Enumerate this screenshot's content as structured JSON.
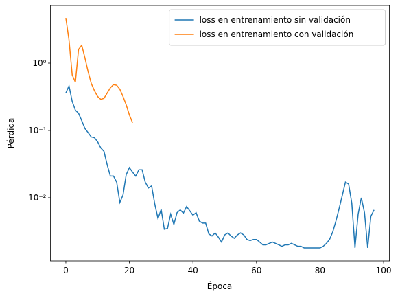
{
  "chart_data": {
    "type": "line",
    "xlabel": "Época",
    "ylabel": "Pérdida",
    "xlim": [
      -4.85,
      101.85
    ],
    "xticks": [
      0,
      20,
      40,
      60,
      80,
      100
    ],
    "ylim": [
      0.00115,
      7.2
    ],
    "ylog": true,
    "yticks": [
      {
        "value": 0.01,
        "label": "10⁻²"
      },
      {
        "value": 0.1,
        "label": "10⁻¹"
      },
      {
        "value": 1,
        "label": "10⁰"
      }
    ],
    "legend": "upper right",
    "series": [
      {
        "name": "loss en entrenamiento sin validación",
        "color": "#1f77b4",
        "x": [
          0,
          1,
          2,
          3,
          4,
          5,
          6,
          7,
          8,
          9,
          10,
          11,
          12,
          13,
          14,
          15,
          16,
          17,
          18,
          19,
          20,
          21,
          22,
          23,
          24,
          25,
          26,
          27,
          28,
          29,
          30,
          31,
          32,
          33,
          34,
          35,
          36,
          37,
          38,
          39,
          40,
          41,
          42,
          43,
          44,
          45,
          46,
          47,
          48,
          49,
          50,
          51,
          52,
          53,
          54,
          55,
          56,
          57,
          58,
          59,
          60,
          61,
          62,
          63,
          64,
          65,
          66,
          67,
          68,
          69,
          70,
          71,
          72,
          73,
          74,
          75,
          76,
          77,
          78,
          79,
          80,
          81,
          82,
          83,
          84,
          85,
          86,
          87,
          88,
          89,
          90,
          91,
          92,
          93,
          94,
          95,
          96,
          97
        ],
        "values": [
          0.36,
          0.46,
          0.27,
          0.2,
          0.18,
          0.14,
          0.107,
          0.093,
          0.08,
          0.078,
          0.068,
          0.055,
          0.049,
          0.031,
          0.021,
          0.021,
          0.017,
          0.0085,
          0.011,
          0.022,
          0.028,
          0.024,
          0.021,
          0.026,
          0.026,
          0.017,
          0.014,
          0.015,
          0.008,
          0.0049,
          0.0067,
          0.0034,
          0.0035,
          0.0057,
          0.004,
          0.006,
          0.0066,
          0.0059,
          0.0074,
          0.0064,
          0.0055,
          0.006,
          0.0045,
          0.0042,
          0.0042,
          0.0029,
          0.0027,
          0.003,
          0.0026,
          0.0022,
          0.0028,
          0.003,
          0.0027,
          0.0025,
          0.0028,
          0.003,
          0.0028,
          0.0024,
          0.0023,
          0.0024,
          0.0024,
          0.0022,
          0.002,
          0.002,
          0.0021,
          0.0022,
          0.0021,
          0.002,
          0.0019,
          0.002,
          0.002,
          0.0021,
          0.002,
          0.0019,
          0.0019,
          0.0018,
          0.0018,
          0.0018,
          0.0018,
          0.0018,
          0.0018,
          0.0019,
          0.0021,
          0.0024,
          0.0031,
          0.0045,
          0.0069,
          0.0108,
          0.0171,
          0.016,
          0.0083,
          0.0018,
          0.0057,
          0.01,
          0.006,
          0.0018,
          0.0053,
          0.0066
        ]
      },
      {
        "name": "loss en entrenamiento con validación",
        "color": "#ff7f0e",
        "x": [
          0,
          1,
          2,
          3,
          4,
          5,
          6,
          7,
          8,
          9,
          10,
          11,
          12,
          13,
          14,
          15,
          16,
          17,
          18,
          19,
          20,
          21
        ],
        "values": [
          4.7,
          2.2,
          0.67,
          0.52,
          1.6,
          1.85,
          1.2,
          0.75,
          0.5,
          0.39,
          0.32,
          0.29,
          0.3,
          0.36,
          0.43,
          0.48,
          0.47,
          0.41,
          0.32,
          0.24,
          0.17,
          0.13
        ]
      }
    ]
  }
}
